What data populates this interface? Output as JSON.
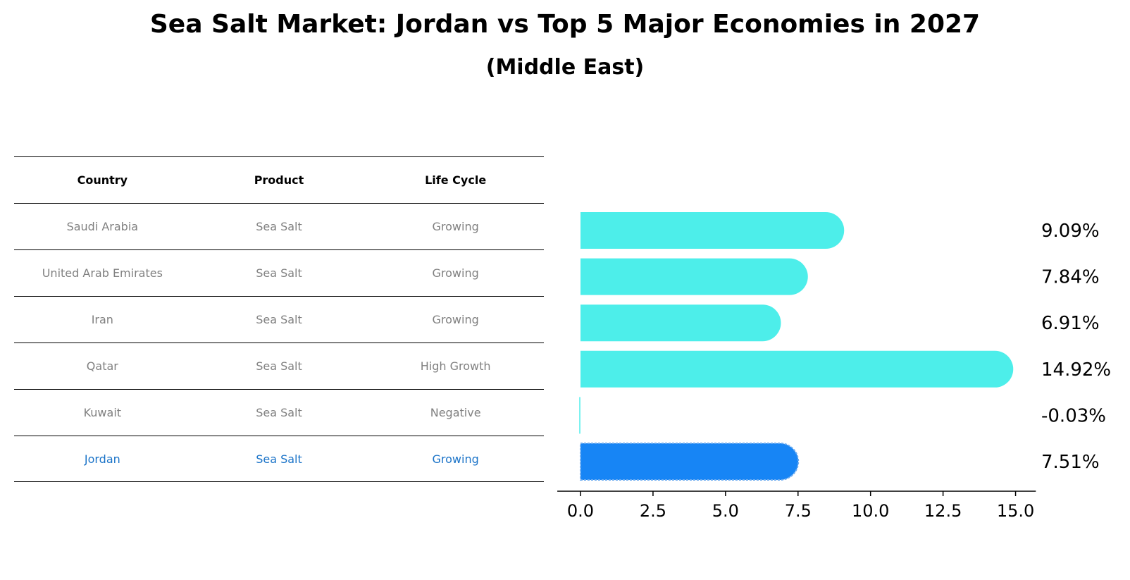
{
  "title": "Sea Salt Market: Jordan vs Top 5 Major Economies in 2027",
  "subtitle": "(Middle East)",
  "table": {
    "headers": [
      "Country",
      "Product",
      "Life Cycle"
    ],
    "rows": [
      [
        "Saudi Arabia",
        "Sea Salt",
        "Growing"
      ],
      [
        "United Arab Emirates",
        "Sea Salt",
        "Growing"
      ],
      [
        "Iran",
        "Sea Salt",
        "Growing"
      ],
      [
        "Qatar",
        "Sea Salt",
        "High Growth"
      ],
      [
        "Kuwait",
        "Sea Salt",
        "Negative"
      ],
      [
        "Jordan",
        "Sea Salt",
        "Growing"
      ]
    ],
    "highlight_row": 5
  },
  "chart_data": {
    "type": "bar",
    "orientation": "horizontal",
    "categories": [
      "Saudi Arabia",
      "United Arab Emirates",
      "Iran",
      "Qatar",
      "Kuwait",
      "Jordan"
    ],
    "values": [
      9.09,
      7.84,
      6.91,
      14.92,
      -0.03,
      7.51
    ],
    "value_labels": [
      "9.09%",
      "7.84%",
      "6.91%",
      "14.92%",
      "-0.03%",
      "7.51%"
    ],
    "xlim": [
      -0.8,
      15.7
    ],
    "xticks": [
      0.0,
      2.5,
      5.0,
      7.5,
      10.0,
      12.5,
      15.0
    ],
    "xtick_labels": [
      "0.0",
      "2.5",
      "5.0",
      "7.5",
      "10.0",
      "12.5",
      "15.0"
    ],
    "grid": false,
    "colors": {
      "default": "#4deeea",
      "highlight": "#1785f5",
      "highlight_edge": "#6aaaf0"
    },
    "highlight_index": 5
  }
}
